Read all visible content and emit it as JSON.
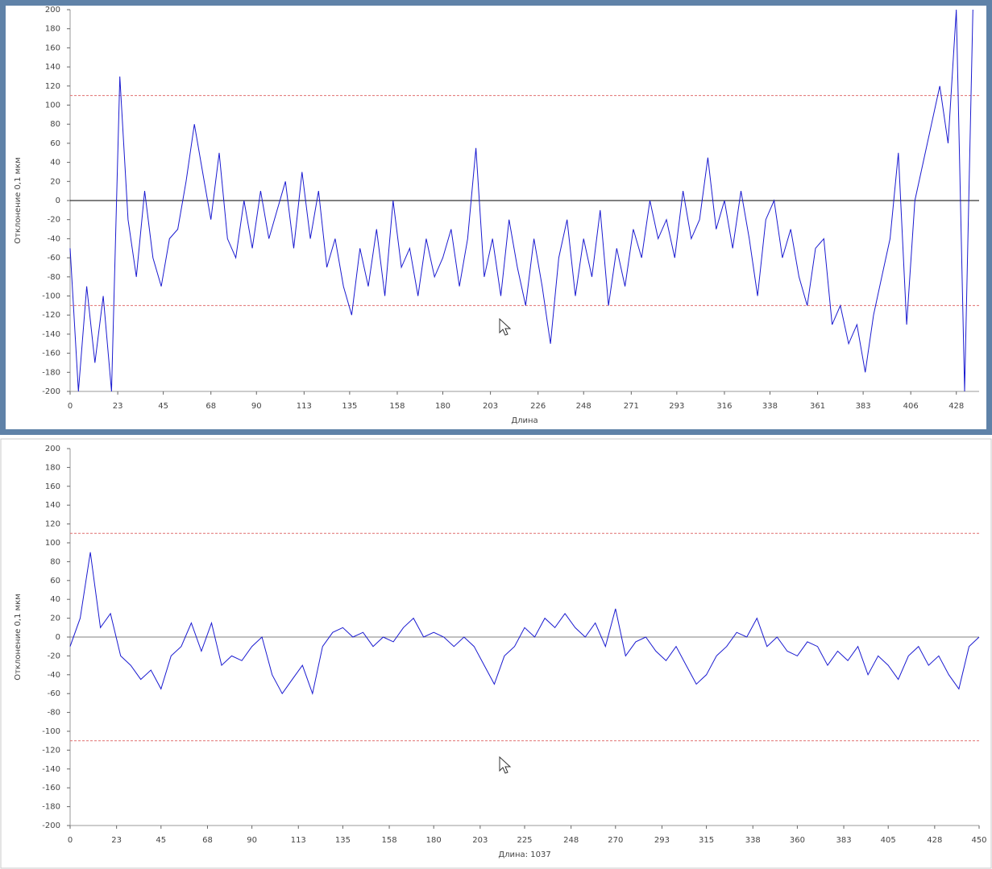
{
  "chart_data": [
    {
      "type": "line",
      "ylabel": "Отклонение 0,1 мкм",
      "xlabel": "Длина",
      "xlim": [
        0,
        439
      ],
      "xticks": [
        0,
        23,
        45,
        68,
        90,
        113,
        135,
        158,
        180,
        203,
        226,
        248,
        271,
        293,
        316,
        338,
        361,
        383,
        406,
        428
      ],
      "ylim": [
        -200,
        200
      ],
      "yticks": [
        -200,
        -180,
        -160,
        -140,
        -120,
        -100,
        -80,
        -60,
        -40,
        -20,
        0,
        20,
        40,
        60,
        80,
        100,
        120,
        140,
        160,
        180,
        200
      ],
      "threshold_lines": [
        110,
        -110
      ],
      "threshold_color": "#e07070",
      "zero_line_color": "#000000",
      "color": "#1a1ad0",
      "x": [
        0,
        4,
        8,
        12,
        16,
        20,
        24,
        28,
        32,
        36,
        40,
        44,
        48,
        52,
        56,
        60,
        64,
        68,
        72,
        76,
        80,
        84,
        88,
        92,
        96,
        100,
        104,
        108,
        112,
        116,
        120,
        124,
        128,
        132,
        136,
        140,
        144,
        148,
        152,
        156,
        160,
        164,
        168,
        172,
        176,
        180,
        184,
        188,
        192,
        196,
        200,
        204,
        208,
        212,
        216,
        220,
        224,
        228,
        232,
        236,
        240,
        244,
        248,
        252,
        256,
        260,
        264,
        268,
        272,
        276,
        280,
        284,
        288,
        292,
        296,
        300,
        304,
        308,
        312,
        316,
        320,
        324,
        328,
        332,
        336,
        340,
        344,
        348,
        352,
        356,
        360,
        364,
        368,
        372,
        376,
        380,
        384,
        388,
        392,
        396,
        400,
        404,
        408,
        412,
        416,
        420,
        424,
        428,
        432,
        436
      ],
      "values": [
        -50,
        -200,
        -90,
        -170,
        -100,
        -200,
        130,
        -20,
        -80,
        10,
        -60,
        -90,
        -40,
        -30,
        20,
        80,
        30,
        -20,
        50,
        -40,
        -60,
        0,
        -50,
        10,
        -40,
        -10,
        20,
        -50,
        30,
        -40,
        10,
        -70,
        -40,
        -90,
        -120,
        -50,
        -90,
        -30,
        -100,
        0,
        -70,
        -50,
        -100,
        -40,
        -80,
        -60,
        -30,
        -90,
        -40,
        55,
        -80,
        -40,
        -100,
        -20,
        -70,
        -110,
        -40,
        -90,
        -150,
        -60,
        -20,
        -100,
        -40,
        -80,
        -10,
        -110,
        -50,
        -90,
        -30,
        -60,
        0,
        -40,
        -20,
        -60,
        10,
        -40,
        -20,
        45,
        -30,
        0,
        -50,
        10,
        -40,
        -100,
        -20,
        0,
        -60,
        -30,
        -80,
        -110,
        -50,
        -40,
        -130,
        -110,
        -150,
        -130,
        -180,
        -120,
        -80,
        -40,
        50,
        -130,
        0,
        40,
        80,
        120,
        60,
        200,
        -200,
        200
      ]
    },
    {
      "type": "line",
      "ylabel": "Отклонение 0,1 мкм",
      "xlabel": "Длина: 1037",
      "xlim": [
        0,
        450
      ],
      "xticks": [
        0,
        23,
        45,
        68,
        90,
        113,
        135,
        158,
        180,
        203,
        225,
        248,
        270,
        293,
        315,
        338,
        360,
        383,
        405,
        428,
        450
      ],
      "ylim": [
        -200,
        200
      ],
      "yticks": [
        -200,
        -180,
        -160,
        -140,
        -120,
        -100,
        -80,
        -60,
        -40,
        -20,
        0,
        20,
        40,
        60,
        80,
        100,
        120,
        140,
        160,
        180,
        200
      ],
      "threshold_lines": [
        110,
        -110
      ],
      "threshold_color": "#e07070",
      "zero_line_color": "#808080",
      "color": "#1a1ad0",
      "x": [
        0,
        5,
        10,
        15,
        20,
        25,
        30,
        35,
        40,
        45,
        50,
        55,
        60,
        65,
        70,
        75,
        80,
        85,
        90,
        95,
        100,
        105,
        110,
        115,
        120,
        125,
        130,
        135,
        140,
        145,
        150,
        155,
        160,
        165,
        170,
        175,
        180,
        185,
        190,
        195,
        200,
        205,
        210,
        215,
        220,
        225,
        230,
        235,
        240,
        245,
        250,
        255,
        260,
        265,
        270,
        275,
        280,
        285,
        290,
        295,
        300,
        305,
        310,
        315,
        320,
        325,
        330,
        335,
        340,
        345,
        350,
        355,
        360,
        365,
        370,
        375,
        380,
        385,
        390,
        395,
        400,
        405,
        410,
        415,
        420,
        425,
        430,
        435,
        440,
        445,
        450
      ],
      "values": [
        -10,
        20,
        90,
        10,
        25,
        -20,
        -30,
        -45,
        -35,
        -55,
        -20,
        -10,
        15,
        -15,
        15,
        -30,
        -20,
        -25,
        -10,
        0,
        -40,
        -60,
        -45,
        -30,
        -60,
        -10,
        5,
        10,
        0,
        5,
        -10,
        0,
        -5,
        10,
        20,
        0,
        5,
        0,
        -10,
        0,
        -10,
        -30,
        -50,
        -20,
        -10,
        10,
        0,
        20,
        10,
        25,
        10,
        0,
        15,
        -10,
        30,
        -20,
        -5,
        0,
        -15,
        -25,
        -10,
        -30,
        -50,
        -40,
        -20,
        -10,
        5,
        0,
        20,
        -10,
        0,
        -15,
        -20,
        -5,
        -10,
        -30,
        -15,
        -25,
        -10,
        -40,
        -20,
        -30,
        -45,
        -20,
        -10,
        -30,
        -20,
        -40,
        -55,
        -10,
        0
      ]
    }
  ]
}
